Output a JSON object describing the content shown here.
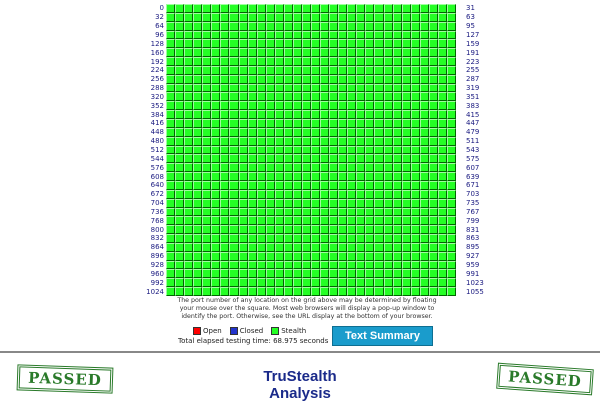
{
  "grid": {
    "rows": 33,
    "cols": 32,
    "left_labels": [
      "0",
      "32",
      "64",
      "96",
      "128",
      "160",
      "192",
      "224",
      "256",
      "288",
      "320",
      "352",
      "384",
      "416",
      "448",
      "480",
      "512",
      "544",
      "576",
      "608",
      "640",
      "672",
      "704",
      "736",
      "768",
      "800",
      "832",
      "864",
      "896",
      "928",
      "960",
      "992",
      "1024"
    ],
    "right_labels": [
      "31",
      "63",
      "95",
      "127",
      "159",
      "191",
      "223",
      "255",
      "287",
      "319",
      "351",
      "383",
      "415",
      "447",
      "479",
      "511",
      "543",
      "575",
      "607",
      "639",
      "671",
      "703",
      "735",
      "767",
      "799",
      "831",
      "863",
      "895",
      "927",
      "959",
      "991",
      "1023",
      "1055"
    ],
    "cell_status": "stealth",
    "colors": {
      "stealth": "#24ff24",
      "open": "#ff0000",
      "closed": "#2233cc"
    }
  },
  "note": "The port number of any location on the grid above may be determined by floating your mouse over the square. Most web browsers will display a pop-up window to identify the port. Otherwise, see the URL display at the bottom of your browser.",
  "legend": {
    "open": "Open",
    "closed": "Closed",
    "stealth": "Stealth"
  },
  "elapsed": "Total elapsed testing time: 68.975 seconds",
  "text_summary_button": "Text Summary",
  "stamps": {
    "left": "PASSED",
    "right": "PASSED"
  },
  "brand": {
    "line1": "TruStealth",
    "line2": "Analysis"
  }
}
